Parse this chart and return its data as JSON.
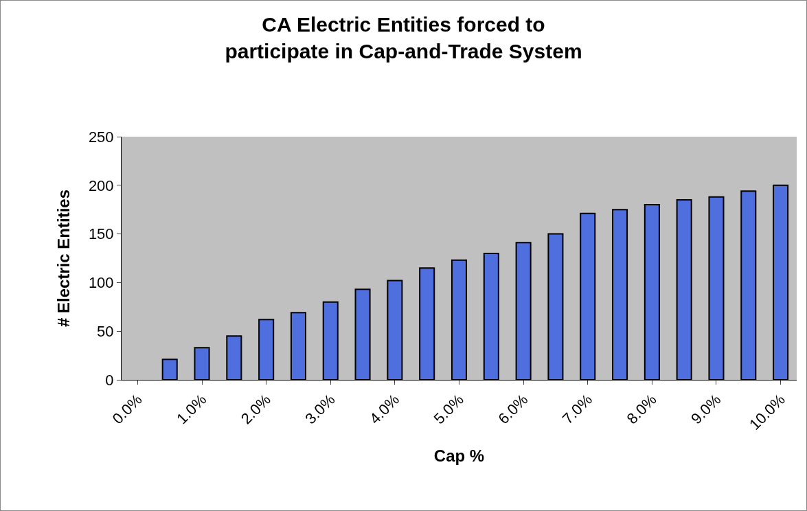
{
  "chart_data": {
    "type": "bar",
    "title": "CA Electric Entities forced to participate in Cap-and-Trade System",
    "xlabel": "Cap %",
    "ylabel": "# Electric Entities",
    "categories": [
      "0.0%",
      null,
      "1.0%",
      null,
      "2.0%",
      null,
      "3.0%",
      null,
      "4.0%",
      null,
      "5.0%",
      null,
      "6.0%",
      null,
      "7.0%",
      null,
      "8.0%",
      null,
      "9.0%",
      null,
      "10.0%"
    ],
    "values": [
      null,
      21,
      33,
      45,
      62,
      69,
      80,
      93,
      102,
      115,
      123,
      130,
      141,
      150,
      171,
      175,
      180,
      185,
      188,
      194,
      200
    ],
    "color": "#4f6fdf",
    "ylim": [
      0,
      250
    ],
    "yticks": [
      0,
      50,
      100,
      150,
      200,
      250
    ]
  }
}
